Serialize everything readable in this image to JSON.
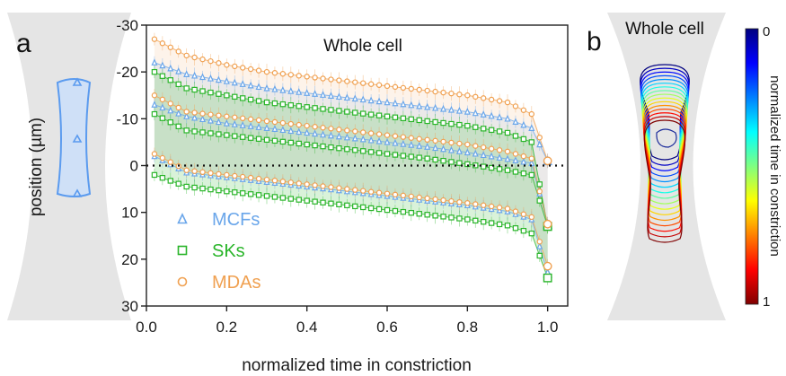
{
  "panel_a": {
    "letter": "a",
    "ylabel": "position (µm)",
    "shape_color": "#5b9bef"
  },
  "panel_b": {
    "letter": "b",
    "title": "Whole cell",
    "colorbar": {
      "label": "normalized time in constriction",
      "min_label": "0",
      "max_label": "1",
      "colors": [
        "#000080",
        "#0000ff",
        "#0080ff",
        "#00ffff",
        "#80ff80",
        "#ffff00",
        "#ff8000",
        "#ff0000",
        "#800000"
      ]
    }
  },
  "chart_data": {
    "type": "line",
    "title": "Whole cell",
    "xlabel": "normalized time in constriction",
    "ylabel": "position (µm)",
    "xlim": [
      0,
      1.05
    ],
    "ylim": [
      -30,
      30
    ],
    "y_inverted": true,
    "x_ticks": [
      "0.0",
      "0.2",
      "0.4",
      "0.6",
      "0.8",
      "1.0"
    ],
    "y_ticks": [
      "-30",
      "-20",
      "-10",
      "0",
      "10",
      "20",
      "30"
    ],
    "reference_line": {
      "y": 0,
      "style": "dotted"
    },
    "legend_position": "bottom-left",
    "series": [
      {
        "name": "MCFs",
        "color": "#6aa6ea",
        "marker": "triangle",
        "x": [
          0.02,
          0.1,
          0.2,
          0.3,
          0.4,
          0.5,
          0.6,
          0.7,
          0.8,
          0.9,
          0.96,
          1.0
        ],
        "top": [
          -22,
          -19.5,
          -18,
          -16.5,
          -15.5,
          -14.5,
          -13.5,
          -12.5,
          -11.5,
          -10,
          -8,
          -1
        ],
        "mid": [
          -13,
          -10.5,
          -9,
          -8,
          -7,
          -6,
          -5,
          -4,
          -2.8,
          -1.4,
          -0.5,
          12.5
        ],
        "bottom": [
          -2,
          1.5,
          2.5,
          3.5,
          4.5,
          5.5,
          6.5,
          7.5,
          8.5,
          9.8,
          11.5,
          23
        ]
      },
      {
        "name": "SKs",
        "color": "#2ab52a",
        "marker": "square",
        "x": [
          0.02,
          0.1,
          0.2,
          0.3,
          0.4,
          0.5,
          0.6,
          0.7,
          0.8,
          0.9,
          0.96,
          1.0
        ],
        "top": [
          -20,
          -16.5,
          -15,
          -13.5,
          -12.5,
          -11.5,
          -10.5,
          -9.5,
          -8.5,
          -7,
          -5,
          13
        ],
        "mid": [
          -11,
          -7.5,
          -6.5,
          -5.5,
          -4.5,
          -3.5,
          -2.5,
          -1.5,
          -0.3,
          1,
          2,
          13
        ],
        "bottom": [
          2,
          4.5,
          5.5,
          6.5,
          7.5,
          8.5,
          9.5,
          10.5,
          11.5,
          12.8,
          14.5,
          24
        ]
      },
      {
        "name": "MDAs",
        "color": "#f0a050",
        "marker": "circle",
        "x": [
          0.02,
          0.1,
          0.2,
          0.3,
          0.4,
          0.5,
          0.6,
          0.7,
          0.8,
          0.9,
          0.96,
          1.0
        ],
        "top": [
          -27,
          -23.5,
          -21.5,
          -20,
          -19,
          -18,
          -17,
          -16,
          -15,
          -13.5,
          -11,
          -1
        ],
        "mid": [
          -15,
          -11.5,
          -10.5,
          -9.5,
          -8.5,
          -7.5,
          -6.5,
          -5.5,
          -4.5,
          -3,
          -1.5,
          12.5
        ],
        "bottom": [
          -2.5,
          1,
          2,
          3,
          4,
          5,
          6,
          7,
          8,
          9.2,
          11,
          21.5
        ]
      }
    ]
  }
}
